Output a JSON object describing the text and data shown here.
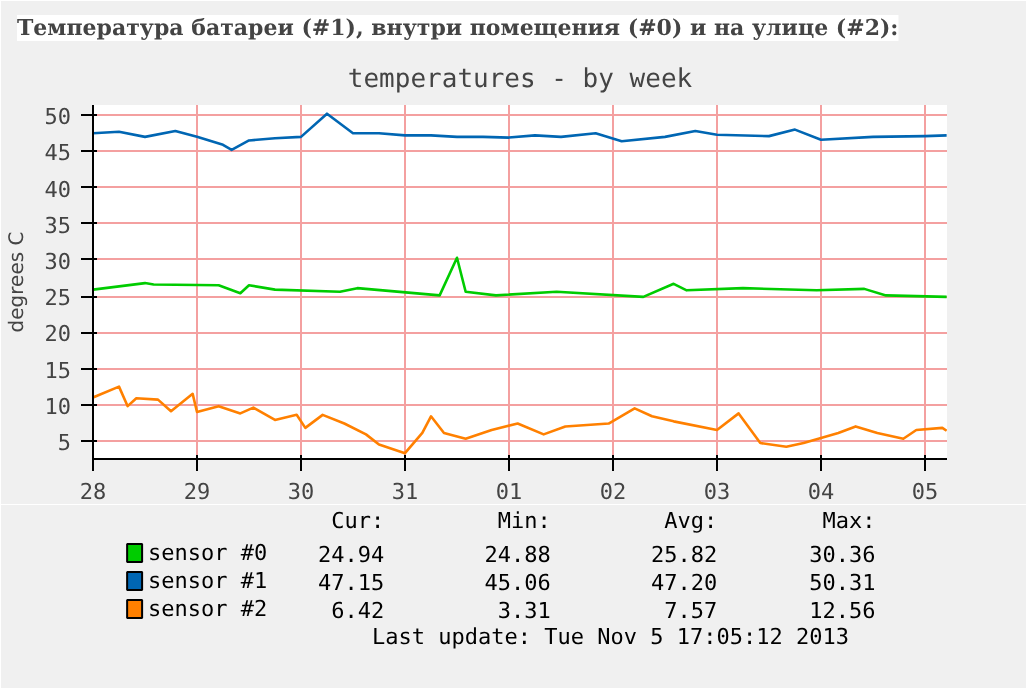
{
  "chart_data": {
    "type": "line",
    "title": "Температура батареи (#1), внутри помещения (#0) и на улице (#2):",
    "subtitle": "temperatures - by week",
    "ylabel": "degrees C",
    "xlim": [
      "2013-10-28T12:00",
      "2013-11-05T17:05"
    ],
    "xticks": [
      {
        "value": "2013-10-28T12:00",
        "label": "28"
      },
      {
        "value": "2013-10-29T12:00",
        "label": "29"
      },
      {
        "value": "2013-10-30T12:00",
        "label": "30"
      },
      {
        "value": "2013-10-31T12:00",
        "label": "31"
      },
      {
        "value": "2013-11-01T12:00",
        "label": "01"
      },
      {
        "value": "2013-11-02T12:00",
        "label": "02"
      },
      {
        "value": "2013-11-03T12:00",
        "label": "03"
      },
      {
        "value": "2013-11-04T12:00",
        "label": "04"
      },
      {
        "value": "2013-11-05T12:00",
        "label": "05"
      }
    ],
    "ylim": [
      2.5,
      51.4
    ],
    "yticks": [
      5,
      10,
      15,
      20,
      25,
      30,
      35,
      40,
      45,
      50
    ],
    "grid": true,
    "legend": "bottom",
    "series": [
      {
        "name": "sensor #0",
        "color": "#00cc00",
        "x": [
          "2013-10-28T12:00",
          "2013-10-29T00:00",
          "2013-10-29T02:00",
          "2013-10-29T17:00",
          "2013-10-29T22:00",
          "2013-10-30T00:00",
          "2013-10-30T06:00",
          "2013-10-30T21:00",
          "2013-10-31T01:00",
          "2013-10-31T20:00",
          "2013-11-01T00:00",
          "2013-11-01T02:00",
          "2013-11-01T09:00",
          "2013-11-01T23:00",
          "2013-11-02T19:00",
          "2013-11-03T02:00",
          "2013-11-03T05:00",
          "2013-11-03T18:00",
          "2013-11-04T11:00",
          "2013-11-04T22:00",
          "2013-11-05T03:00",
          "2013-11-05T17:00"
        ],
        "values": [
          25.9,
          26.8,
          26.6,
          26.5,
          25.4,
          26.5,
          25.9,
          25.6,
          26.1,
          25.1,
          30.3,
          25.6,
          25.1,
          25.6,
          24.9,
          26.7,
          25.8,
          26.1,
          25.8,
          26.0,
          25.1,
          24.9
        ]
      },
      {
        "name": "sensor #1",
        "color": "#0066b3",
        "x": [
          "2013-10-28T12:00",
          "2013-10-28T18:00",
          "2013-10-29T00:00",
          "2013-10-29T07:00",
          "2013-10-29T12:00",
          "2013-10-29T18:00",
          "2013-10-29T20:00",
          "2013-10-30T00:00",
          "2013-10-30T06:00",
          "2013-10-30T12:00",
          "2013-10-30T18:00",
          "2013-10-31T00:00",
          "2013-10-31T06:00",
          "2013-10-31T12:00",
          "2013-10-31T18:00",
          "2013-11-01T00:00",
          "2013-11-01T06:00",
          "2013-11-01T12:00",
          "2013-11-01T18:00",
          "2013-11-02T00:00",
          "2013-11-02T08:00",
          "2013-11-02T14:00",
          "2013-11-03T00:00",
          "2013-11-03T07:00",
          "2013-11-03T12:00",
          "2013-11-04T00:00",
          "2013-11-04T06:00",
          "2013-11-04T12:00",
          "2013-11-05T00:00",
          "2013-11-05T12:00",
          "2013-11-05T17:00"
        ],
        "values": [
          47.5,
          47.7,
          47.0,
          47.8,
          47.0,
          45.9,
          45.2,
          46.5,
          46.8,
          47.0,
          50.2,
          47.5,
          47.5,
          47.2,
          47.2,
          47.0,
          47.0,
          46.9,
          47.2,
          47.0,
          47.5,
          46.4,
          47.0,
          47.8,
          47.3,
          47.1,
          48.0,
          46.6,
          47.0,
          47.1,
          47.2
        ]
      },
      {
        "name": "sensor #2",
        "color": "#ff8000",
        "x": [
          "2013-10-28T12:00",
          "2013-10-28T18:00",
          "2013-10-28T20:00",
          "2013-10-28T22:00",
          "2013-10-29T03:00",
          "2013-10-29T06:00",
          "2013-10-29T11:00",
          "2013-10-29T12:00",
          "2013-10-29T17:00",
          "2013-10-29T22:00",
          "2013-10-30T01:00",
          "2013-10-30T06:00",
          "2013-10-30T11:00",
          "2013-10-30T13:00",
          "2013-10-30T17:00",
          "2013-10-30T22:00",
          "2013-10-31T03:00",
          "2013-10-31T06:00",
          "2013-10-31T12:00",
          "2013-10-31T16:00",
          "2013-10-31T18:00",
          "2013-10-31T21:00",
          "2013-11-01T02:00",
          "2013-11-01T08:00",
          "2013-11-01T14:00",
          "2013-11-01T20:00",
          "2013-11-02T01:00",
          "2013-11-02T11:00",
          "2013-11-02T17:00",
          "2013-11-02T21:00",
          "2013-11-03T02:00",
          "2013-11-03T12:00",
          "2013-11-03T17:00",
          "2013-11-03T22:00",
          "2013-11-04T04:00",
          "2013-11-04T08:00",
          "2013-11-04T16:00",
          "2013-11-04T20:00",
          "2013-11-05T01:00",
          "2013-11-05T07:00",
          "2013-11-05T10:00",
          "2013-11-05T16:00",
          "2013-11-05T17:00"
        ],
        "values": [
          11.0,
          12.5,
          9.8,
          10.9,
          10.7,
          9.1,
          11.5,
          9.0,
          9.8,
          8.8,
          9.6,
          7.9,
          8.6,
          6.8,
          8.6,
          7.4,
          5.9,
          4.5,
          3.3,
          6.1,
          8.4,
          6.1,
          5.3,
          6.5,
          7.4,
          5.9,
          7.0,
          7.4,
          9.5,
          8.4,
          7.7,
          6.5,
          8.8,
          4.7,
          4.2,
          4.7,
          6.1,
          7.0,
          6.1,
          5.3,
          6.5,
          6.8,
          6.4
        ]
      }
    ],
    "annotations": [
      "Cur:",
      "Min:",
      "Avg:",
      "Max:",
      "24.94",
      "24.88",
      "25.82",
      "30.36",
      "47.15",
      "45.06",
      "47.20",
      "50.31",
      "6.42",
      "3.31",
      "7.57",
      "12.56",
      "Last update:  Tue Nov  5 17:05:12 2013"
    ]
  }
}
